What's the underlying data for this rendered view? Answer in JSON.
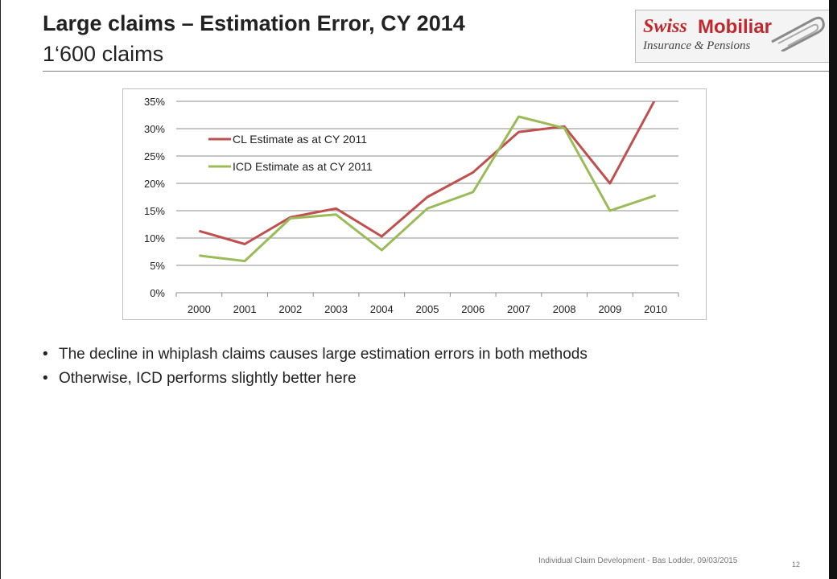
{
  "slide": {
    "title": "Large claims – Estimation Error, CY 2014",
    "subtitle": "1‘600 claims",
    "logo": {
      "word1": "Swiss",
      "word2": "Mobiliar",
      "sub": "Insurance & Pensions"
    },
    "bullets": [
      "The decline in whiplash claims causes large estimation errors in both methods",
      "Otherwise, ICD performs slightly better here"
    ],
    "footer": "Individual Claim Development - Bas Lodder, 09/03/2015",
    "page_number": "12"
  },
  "chart_data": {
    "type": "line",
    "title": "",
    "xlabel": "",
    "ylabel": "",
    "categories": [
      "2000",
      "2001",
      "2002",
      "2003",
      "2004",
      "2005",
      "2006",
      "2007",
      "2008",
      "2009",
      "2010"
    ],
    "ylim": [
      0,
      0.35
    ],
    "yticks": [
      "0%",
      "5%",
      "10%",
      "15%",
      "20%",
      "25%",
      "30%",
      "35%"
    ],
    "grid": true,
    "legend": "top-left, inside",
    "series": [
      {
        "name": "CL Estimate as at CY 2011",
        "color": "#c0504d",
        "values": [
          0.113,
          0.089,
          0.138,
          0.154,
          0.103,
          0.175,
          0.22,
          0.294,
          0.304,
          0.2,
          0.355
        ]
      },
      {
        "name": "ICD Estimate as at CY 2011",
        "color": "#9bbb59",
        "values": [
          0.068,
          0.058,
          0.136,
          0.143,
          0.078,
          0.154,
          0.184,
          0.322,
          0.301,
          0.15,
          0.178
        ]
      }
    ]
  }
}
